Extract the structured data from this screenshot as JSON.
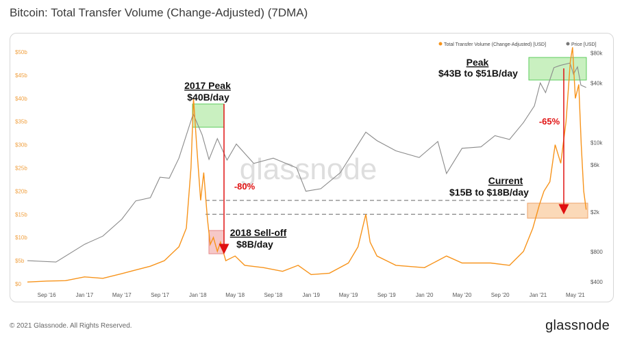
{
  "title": "Bitcoin: Total Transfer Volume (Change-Adjusted) (7DMA)",
  "footer": {
    "copyright": "© 2021 Glassnode. All Rights Reserved.",
    "brand": "glassnode"
  },
  "watermark": "glassnode",
  "colors": {
    "volume": "#f7931a",
    "price": "#8a8a8a",
    "green_box": "#5ccc5c",
    "red_box": "#f4a3a3",
    "orange_box": "#f9c79a",
    "arrow": "#e01010"
  },
  "chart_data": {
    "type": "line",
    "x_ticks": [
      "Sep '16",
      "Jan '17",
      "May '17",
      "Sep '17",
      "Jan '18",
      "May '18",
      "Sep '18",
      "Jan '19",
      "May '19",
      "Sep '19",
      "Jan '20",
      "May '20",
      "Sep '20",
      "Jan '21",
      "May '21"
    ],
    "y_left_ticks": [
      "$0",
      "$5b",
      "$10b",
      "$15b",
      "$20b",
      "$25b",
      "$30b",
      "$35b",
      "$40b",
      "$45b",
      "$50b"
    ],
    "y_right_ticks": [
      "$400",
      "$800",
      "$2k",
      "$6k",
      "$10k",
      "$40k",
      "$80k"
    ],
    "y_left_range": [
      0,
      50
    ],
    "y_right_scale": "log",
    "legend": [
      "Total Transfer Volume (Change-Adjusted) [USD]",
      "Price [USD]"
    ],
    "legend_position": "top-right",
    "series": [
      {
        "name": "Total Transfer Volume (Change-Adjusted) [USD]",
        "axis": "left",
        "points": [
          [
            "2016-07-01",
            0.4
          ],
          [
            "2016-09-01",
            0.6
          ],
          [
            "2016-11-01",
            0.7
          ],
          [
            "2017-01-01",
            1.5
          ],
          [
            "2017-03-01",
            1.2
          ],
          [
            "2017-05-01",
            2.2
          ],
          [
            "2017-06-15",
            3.0
          ],
          [
            "2017-08-01",
            3.8
          ],
          [
            "2017-09-15",
            5.0
          ],
          [
            "2017-11-01",
            8.0
          ],
          [
            "2017-11-25",
            12.0
          ],
          [
            "2017-12-10",
            25.0
          ],
          [
            "2017-12-18",
            40.0
          ],
          [
            "2017-12-28",
            30.0
          ],
          [
            "2018-01-10",
            18.0
          ],
          [
            "2018-01-20",
            24.0
          ],
          [
            "2018-02-01",
            14.0
          ],
          [
            "2018-02-10",
            8.5
          ],
          [
            "2018-02-20",
            10.0
          ],
          [
            "2018-03-05",
            7.0
          ],
          [
            "2018-03-15",
            9.0
          ],
          [
            "2018-04-01",
            5.0
          ],
          [
            "2018-05-01",
            6.0
          ],
          [
            "2018-06-01",
            4.0
          ],
          [
            "2018-08-01",
            3.5
          ],
          [
            "2018-10-01",
            2.7
          ],
          [
            "2018-11-20",
            4.0
          ],
          [
            "2019-01-01",
            2.0
          ],
          [
            "2019-03-01",
            2.3
          ],
          [
            "2019-05-01",
            4.5
          ],
          [
            "2019-06-01",
            8.0
          ],
          [
            "2019-06-26",
            15.0
          ],
          [
            "2019-07-10",
            9.0
          ],
          [
            "2019-08-01",
            6.0
          ],
          [
            "2019-10-01",
            4.0
          ],
          [
            "2020-01-01",
            3.5
          ],
          [
            "2020-03-12",
            6.0
          ],
          [
            "2020-05-01",
            4.5
          ],
          [
            "2020-08-01",
            4.5
          ],
          [
            "2020-10-01",
            4.0
          ],
          [
            "2020-11-15",
            7.0
          ],
          [
            "2020-12-15",
            12.0
          ],
          [
            "2021-01-05",
            17.0
          ],
          [
            "2021-01-20",
            20.0
          ],
          [
            "2021-02-08",
            22.0
          ],
          [
            "2021-02-25",
            30.0
          ],
          [
            "2021-03-15",
            26.0
          ],
          [
            "2021-04-01",
            35.0
          ],
          [
            "2021-04-15",
            48.0
          ],
          [
            "2021-04-22",
            51.0
          ],
          [
            "2021-05-01",
            40.0
          ],
          [
            "2021-05-12",
            43.0
          ],
          [
            "2021-05-20",
            30.0
          ],
          [
            "2021-05-28",
            20.0
          ],
          [
            "2021-06-05",
            16.0
          ]
        ]
      },
      {
        "name": "Price [USD]",
        "axis": "right",
        "points": [
          [
            "2016-07-01",
            650
          ],
          [
            "2016-10-01",
            630
          ],
          [
            "2017-01-01",
            950
          ],
          [
            "2017-03-01",
            1150
          ],
          [
            "2017-05-01",
            1700
          ],
          [
            "2017-06-15",
            2600
          ],
          [
            "2017-08-01",
            2800
          ],
          [
            "2017-09-01",
            4500
          ],
          [
            "2017-10-01",
            4400
          ],
          [
            "2017-11-01",
            7000
          ],
          [
            "2017-12-17",
            19500
          ],
          [
            "2018-01-15",
            12000
          ],
          [
            "2018-02-06",
            6800
          ],
          [
            "2018-03-05",
            11000
          ],
          [
            "2018-04-05",
            6700
          ],
          [
            "2018-05-05",
            9700
          ],
          [
            "2018-06-30",
            6200
          ],
          [
            "2018-09-01",
            7000
          ],
          [
            "2018-11-15",
            5600
          ],
          [
            "2018-12-15",
            3250
          ],
          [
            "2019-02-01",
            3450
          ],
          [
            "2019-04-05",
            5000
          ],
          [
            "2019-06-26",
            12800
          ],
          [
            "2019-08-01",
            10500
          ],
          [
            "2019-10-01",
            8300
          ],
          [
            "2019-12-15",
            7100
          ],
          [
            "2020-02-13",
            10300
          ],
          [
            "2020-03-12",
            4900
          ],
          [
            "2020-05-01",
            8800
          ],
          [
            "2020-07-01",
            9100
          ],
          [
            "2020-08-15",
            11800
          ],
          [
            "2020-10-01",
            10800
          ],
          [
            "2020-11-15",
            16000
          ],
          [
            "2020-12-20",
            23500
          ],
          [
            "2021-01-08",
            40000
          ],
          [
            "2021-01-25",
            32000
          ],
          [
            "2021-02-21",
            57000
          ],
          [
            "2021-03-13",
            60000
          ],
          [
            "2021-04-14",
            63500
          ],
          [
            "2021-04-25",
            49000
          ],
          [
            "2021-05-08",
            58000
          ],
          [
            "2021-05-19",
            38000
          ],
          [
            "2021-06-05",
            36000
          ]
        ]
      }
    ],
    "annotations": [
      {
        "label": "2017 Peak",
        "value": "$40B/day",
        "box": "green"
      },
      {
        "label": "2018 Sell-off",
        "value": "$8B/day",
        "box": "red"
      },
      {
        "label": "-80%",
        "type": "arrow-down"
      },
      {
        "label": "Peak",
        "value": "$43B to $51B/day",
        "box": "green"
      },
      {
        "label": "-65%",
        "type": "arrow-down"
      },
      {
        "label": "Current",
        "value": "$15B to $18B/day",
        "box": "orange"
      }
    ]
  }
}
